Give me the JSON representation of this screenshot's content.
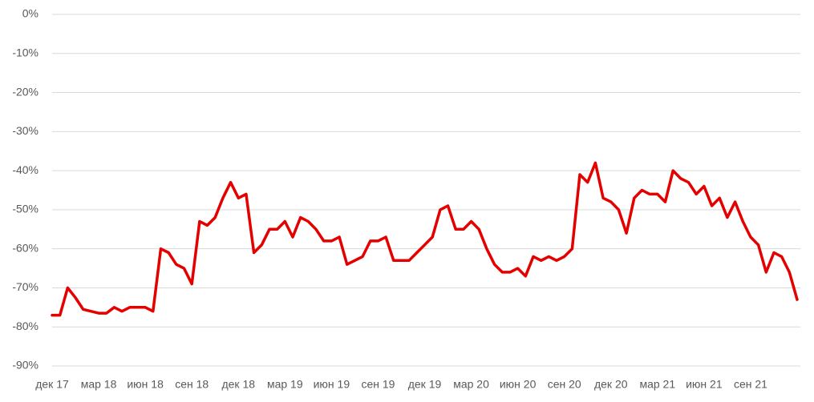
{
  "chart_data": {
    "type": "line",
    "categories": [
      "дек 17",
      null,
      null,
      null,
      null,
      null,
      "мар 18",
      null,
      null,
      null,
      null,
      null,
      "июн 18",
      null,
      null,
      null,
      null,
      null,
      "сен 18",
      null,
      null,
      null,
      null,
      null,
      "дек 18",
      null,
      null,
      null,
      null,
      null,
      "мар 19",
      null,
      null,
      null,
      null,
      null,
      "июн 19",
      null,
      null,
      null,
      null,
      null,
      "сен 19",
      null,
      null,
      null,
      null,
      null,
      "дек 19",
      null,
      null,
      null,
      null,
      null,
      "мар 20",
      null,
      null,
      null,
      null,
      null,
      "июн 20",
      null,
      null,
      null,
      null,
      null,
      "сен 20",
      null,
      null,
      null,
      null,
      null,
      "дек 20",
      null,
      null,
      null,
      null,
      null,
      "мар 21",
      null,
      null,
      null,
      null,
      null,
      "июн 21",
      null,
      null,
      null,
      null,
      null,
      "сен 21",
      null,
      null,
      null,
      null,
      null,
      null
    ],
    "series": [
      {
        "color": "#e50000",
        "values": [
          -77,
          -77,
          -70,
          -72.5,
          -75.5,
          -76,
          -76.5,
          -76.5,
          -75,
          -76,
          -75,
          -75,
          -75,
          -76,
          -60,
          -61,
          -64,
          -65,
          -69,
          -53,
          -54,
          -52,
          -47,
          -43,
          -47,
          -46,
          -61,
          -59,
          -55,
          -55,
          -53,
          -57,
          -52,
          -53,
          -55,
          -58,
          -58,
          -57,
          -64,
          -63,
          -62,
          -58,
          -58,
          -57,
          -63,
          -63,
          -63,
          -61,
          -59,
          -57,
          -50,
          -49,
          -55,
          -55,
          -53,
          -55,
          -60,
          -64,
          -66,
          -66,
          -65,
          -67,
          -62,
          -63,
          -62,
          -63,
          -62,
          -60,
          -41,
          -43,
          -38,
          -47,
          -48,
          -50,
          -56,
          -47,
          -45,
          -46,
          -46,
          -48,
          -40,
          -42,
          -43,
          -46,
          -44,
          -49,
          -47,
          -52,
          -48,
          -53,
          -57,
          -59,
          -66,
          -61,
          -62,
          -66,
          -73
        ]
      }
    ],
    "ylim": [
      -90,
      0
    ],
    "yticks": [
      {
        "value": 0,
        "label": "0%"
      },
      {
        "value": -10,
        "label": "-10%"
      },
      {
        "value": -20,
        "label": "-20%"
      },
      {
        "value": -30,
        "label": "-30%"
      },
      {
        "value": -40,
        "label": "-40%"
      },
      {
        "value": -50,
        "label": "-50%"
      },
      {
        "value": -60,
        "label": "-60%"
      },
      {
        "value": -70,
        "label": "-70%"
      },
      {
        "value": -80,
        "label": "-80%"
      },
      {
        "value": -90,
        "label": "-90%"
      }
    ],
    "grid": true
  }
}
